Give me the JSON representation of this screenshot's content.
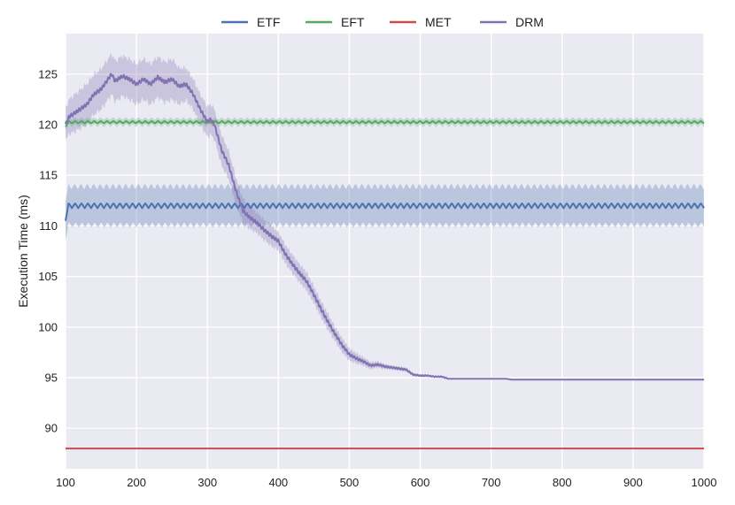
{
  "chart_data": {
    "type": "line",
    "title": "",
    "xlabel": "",
    "ylabel": "Execution Time (ms)",
    "xlim": [
      100,
      1000
    ],
    "ylim": [
      86,
      129
    ],
    "xticks": [
      100,
      200,
      300,
      400,
      500,
      600,
      700,
      800,
      900,
      1000
    ],
    "yticks": [
      90,
      95,
      100,
      105,
      110,
      115,
      120,
      125
    ],
    "grid": true,
    "legend": "top-center",
    "colors": {
      "background": "#eaeaf2",
      "grid": "#ffffff"
    },
    "series": [
      {
        "name": "ETF",
        "color": "#4c72b0",
        "pattern": "oscillating",
        "level": 112.0,
        "start": 110.5,
        "amplitude": 0.25,
        "period": 9,
        "band": 1.9
      },
      {
        "name": "EFT",
        "color": "#55a868",
        "pattern": "oscillating",
        "level": 120.25,
        "start": 119.8,
        "amplitude": 0.12,
        "period": 9,
        "band": 0.35
      },
      {
        "name": "MET",
        "color": "#c44e52",
        "pattern": "constant",
        "level": 88.0,
        "band": 0
      },
      {
        "name": "DRM",
        "color": "#8172b2",
        "pattern": "trajectory",
        "x": [
          100,
          105,
          110,
          120,
          130,
          140,
          150,
          160,
          165,
          170,
          180,
          190,
          200,
          210,
          220,
          230,
          240,
          250,
          260,
          270,
          280,
          290,
          300,
          305,
          310,
          320,
          330,
          340,
          350,
          360,
          370,
          380,
          390,
          400,
          410,
          420,
          430,
          440,
          450,
          460,
          470,
          480,
          490,
          500,
          510,
          520,
          530,
          540,
          550,
          560,
          570,
          580,
          590,
          600,
          610,
          620,
          630,
          640,
          650,
          700,
          720,
          730,
          800,
          900,
          1000
        ],
        "y": [
          120.0,
          120.8,
          121.0,
          121.5,
          122.0,
          123.0,
          123.5,
          124.5,
          125.0,
          124.3,
          124.8,
          124.5,
          124.0,
          124.5,
          124.0,
          124.7,
          124.2,
          124.5,
          123.8,
          124.0,
          123.0,
          121.5,
          120.3,
          120.5,
          120.0,
          117.5,
          116.0,
          113.5,
          111.5,
          110.8,
          110.3,
          109.6,
          109.0,
          108.5,
          107.2,
          106.2,
          105.3,
          104.5,
          103.2,
          101.8,
          100.5,
          99.3,
          98.2,
          97.3,
          96.9,
          96.6,
          96.2,
          96.3,
          96.1,
          96.0,
          95.9,
          95.8,
          95.3,
          95.2,
          95.2,
          95.1,
          95.1,
          94.9,
          94.9,
          94.9,
          94.9,
          94.8,
          94.8,
          94.8,
          94.8
        ],
        "band": [
          1.6,
          1.7,
          1.8,
          1.9,
          2.0,
          2.0,
          2.0,
          2.0,
          2.0,
          2.0,
          2.0,
          2.0,
          2.0,
          2.0,
          2.0,
          2.0,
          2.0,
          2.0,
          1.8,
          1.6,
          1.5,
          1.5,
          1.5,
          1.5,
          1.5,
          1.5,
          1.4,
          1.3,
          1.2,
          1.1,
          1.0,
          1.0,
          1.0,
          0.9,
          0.9,
          0.9,
          0.9,
          0.9,
          0.8,
          0.8,
          0.8,
          0.7,
          0.7,
          0.6,
          0.5,
          0.4,
          0.35,
          0.3,
          0.25,
          0.2,
          0.2,
          0.2,
          0.15,
          0.1,
          0.1,
          0.05,
          0.05,
          0.0,
          0.0,
          0.0,
          0.0,
          0.0,
          0.0,
          0.0,
          0.0
        ]
      }
    ]
  }
}
